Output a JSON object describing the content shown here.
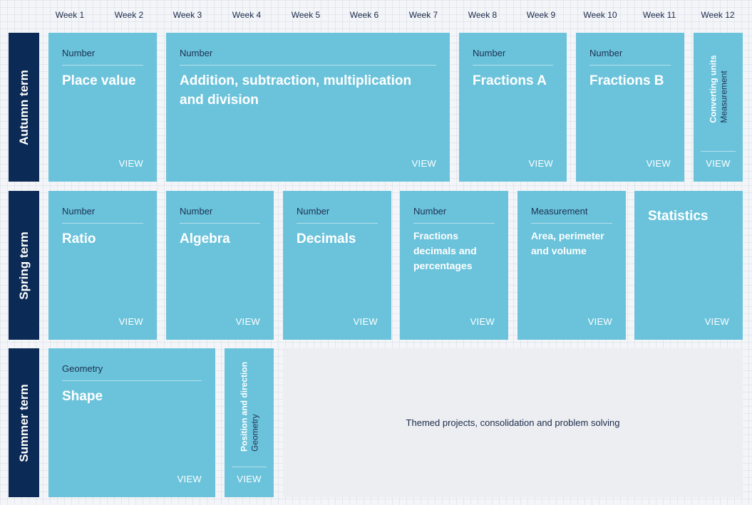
{
  "weeks": [
    "Week 1",
    "Week 2",
    "Week 3",
    "Week 4",
    "Week 5",
    "Week 6",
    "Week 7",
    "Week 8",
    "Week 9",
    "Week 10",
    "Week 11",
    "Week 12"
  ],
  "terms": {
    "autumn": "Autumn term",
    "spring": "Spring term",
    "summer": "Summer term"
  },
  "view_label": "VIEW",
  "autumn": [
    {
      "category": "Number",
      "title": "Place value"
    },
    {
      "category": "Number",
      "title": "Addition, subtraction, multiplication and division"
    },
    {
      "category": "Number",
      "title": "Fractions A"
    },
    {
      "category": "Number",
      "title": "Fractions B"
    },
    {
      "category": "Measurement",
      "title": "Converting units"
    }
  ],
  "spring": [
    {
      "category": "Number",
      "title": "Ratio"
    },
    {
      "category": "Number",
      "title": "Algebra"
    },
    {
      "category": "Number",
      "title": "Decimals"
    },
    {
      "category": "Number",
      "title": "Fractions decimals and percentages"
    },
    {
      "category": "Measurement",
      "title": "Area, perimeter and volume"
    },
    {
      "category": "",
      "title": "Statistics"
    }
  ],
  "summer": [
    {
      "category": "Geometry",
      "title": "Shape"
    },
    {
      "category": "Geometry",
      "title": "Position and direction"
    }
  ],
  "themed_projects": "Themed projects, consolidation and problem solving",
  "colors": {
    "card": "#6bc3db",
    "term_bar": "#0b2a55",
    "themed_bg": "#eceef1"
  }
}
